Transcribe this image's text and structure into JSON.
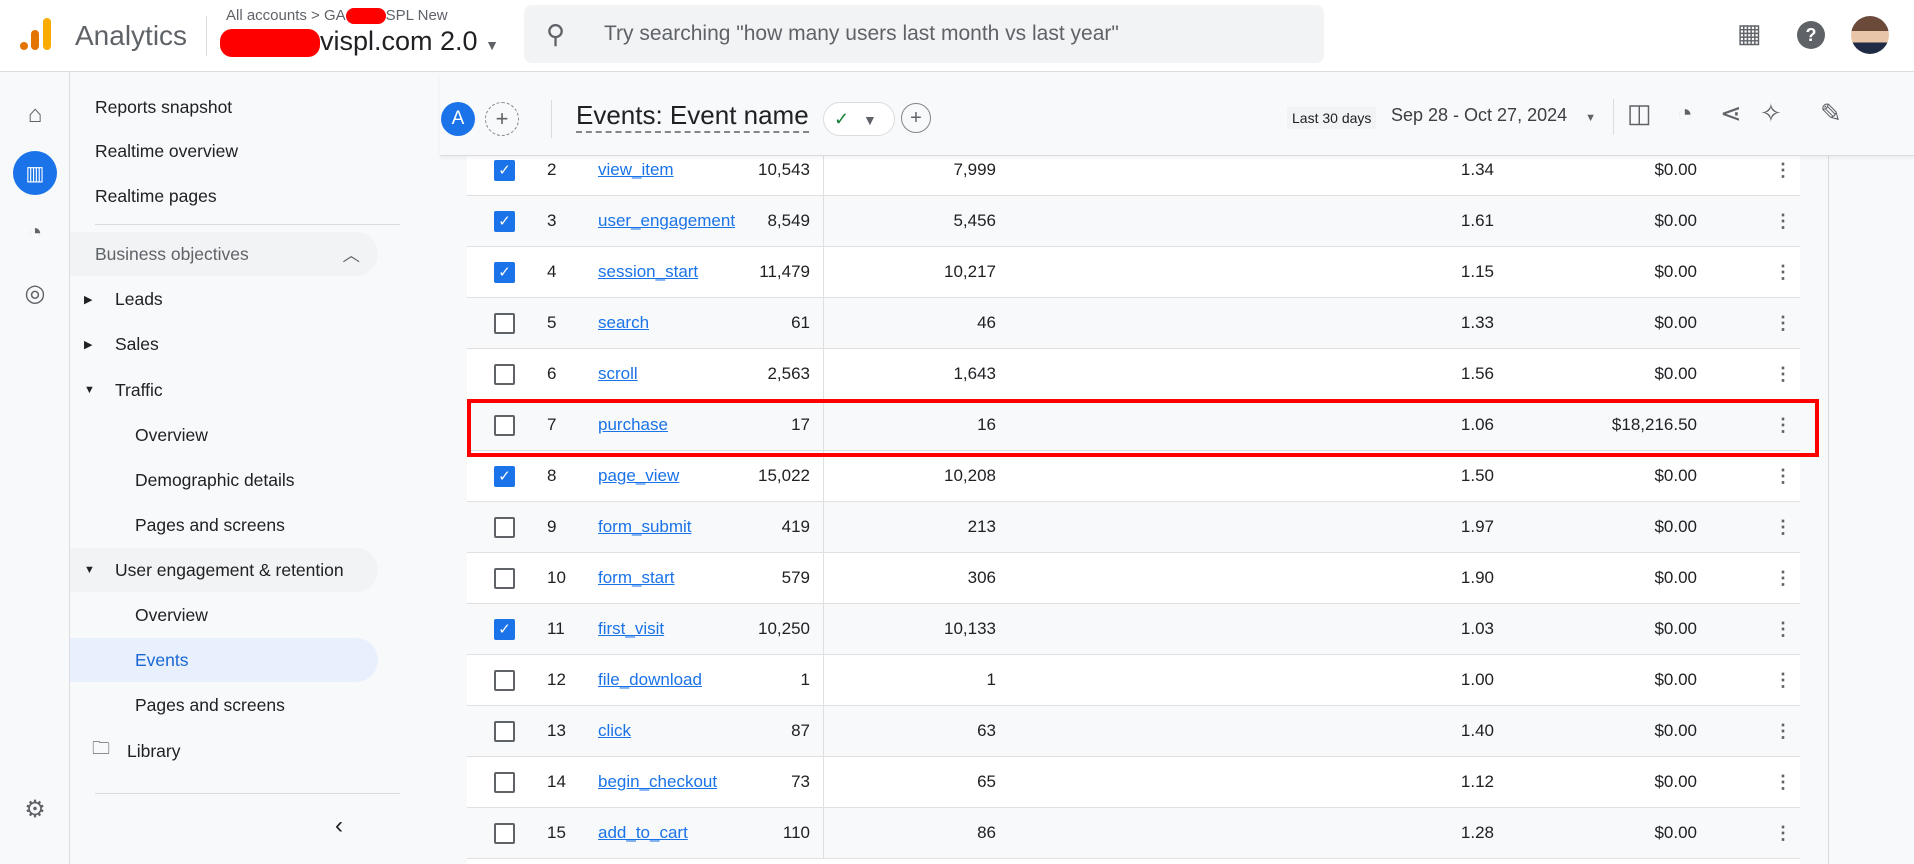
{
  "header": {
    "app_name": "Analytics",
    "breadcrumb": "All accounts > GA",
    "breadcrumb_tail": "SPL New",
    "property": "vispl.com 2.0",
    "search_placeholder": "Try searching \"how many users last month vs last year\""
  },
  "nav": {
    "items": [
      "Reports snapshot",
      "Realtime overview",
      "Realtime pages"
    ],
    "section": "Business objectives",
    "groups": [
      "Leads",
      "Sales",
      "Traffic"
    ],
    "traffic_items": [
      "Overview",
      "Demographic details",
      "Pages and screens"
    ],
    "engagement": "User engagement & retention",
    "engagement_items": [
      "Overview",
      "Events",
      "Pages and screens"
    ],
    "library": "Library"
  },
  "toolbar": {
    "avatar": "A",
    "title": "Events: Event name",
    "range_chip": "Last 30 days",
    "date_range": "Sep 28 - Oct 27, 2024"
  },
  "table": {
    "rows": [
      {
        "n": "2",
        "name": "view_item",
        "c1": "10,543",
        "c2": "7,999",
        "c3": "1.34",
        "c4": "$0.00",
        "checked": true
      },
      {
        "n": "3",
        "name": "user_engagement",
        "c1": "8,549",
        "c2": "5,456",
        "c3": "1.61",
        "c4": "$0.00",
        "checked": true
      },
      {
        "n": "4",
        "name": "session_start",
        "c1": "11,479",
        "c2": "10,217",
        "c3": "1.15",
        "c4": "$0.00",
        "checked": true
      },
      {
        "n": "5",
        "name": "search",
        "c1": "61",
        "c2": "46",
        "c3": "1.33",
        "c4": "$0.00",
        "checked": false
      },
      {
        "n": "6",
        "name": "scroll",
        "c1": "2,563",
        "c2": "1,643",
        "c3": "1.56",
        "c4": "$0.00",
        "checked": false
      },
      {
        "n": "7",
        "name": "purchase",
        "c1": "17",
        "c2": "16",
        "c3": "1.06",
        "c4": "$18,216.50",
        "checked": false
      },
      {
        "n": "8",
        "name": "page_view",
        "c1": "15,022",
        "c2": "10,208",
        "c3": "1.50",
        "c4": "$0.00",
        "checked": true
      },
      {
        "n": "9",
        "name": "form_submit",
        "c1": "419",
        "c2": "213",
        "c3": "1.97",
        "c4": "$0.00",
        "checked": false
      },
      {
        "n": "10",
        "name": "form_start",
        "c1": "579",
        "c2": "306",
        "c3": "1.90",
        "c4": "$0.00",
        "checked": false
      },
      {
        "n": "11",
        "name": "first_visit",
        "c1": "10,250",
        "c2": "10,133",
        "c3": "1.03",
        "c4": "$0.00",
        "checked": true
      },
      {
        "n": "12",
        "name": "file_download",
        "c1": "1",
        "c2": "1",
        "c3": "1.00",
        "c4": "$0.00",
        "checked": false
      },
      {
        "n": "13",
        "name": "click",
        "c1": "87",
        "c2": "63",
        "c3": "1.40",
        "c4": "$0.00",
        "checked": false
      },
      {
        "n": "14",
        "name": "begin_checkout",
        "c1": "73",
        "c2": "65",
        "c3": "1.12",
        "c4": "$0.00",
        "checked": false
      },
      {
        "n": "15",
        "name": "add_to_cart",
        "c1": "110",
        "c2": "86",
        "c3": "1.28",
        "c4": "$0.00",
        "checked": false
      }
    ]
  }
}
